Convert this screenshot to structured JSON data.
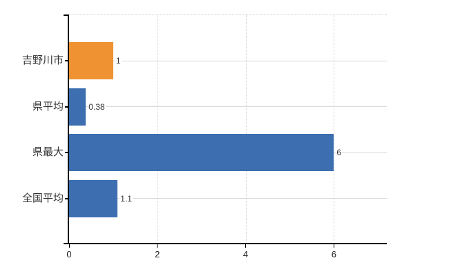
{
  "chart_data": {
    "type": "bar",
    "orientation": "horizontal",
    "title": "",
    "xlabel": "",
    "ylabel": "",
    "categories": [
      "吉野川市",
      "県平均",
      "県最大",
      "全国平均"
    ],
    "values": [
      1,
      0.38,
      6,
      1.1
    ],
    "value_labels": [
      "1",
      "0.38",
      "6",
      "1.1"
    ],
    "series": [
      {
        "name": "",
        "values": [
          1,
          0.38,
          6,
          1.1
        ]
      }
    ],
    "bar_colors": [
      "#ef9231",
      "#3c6eb0",
      "#3c6eb0",
      "#3c6eb0"
    ],
    "x_ticks": [
      "0",
      "2",
      "4",
      "6"
    ],
    "x_tick_values": [
      0,
      2,
      4,
      6
    ],
    "xlim": [
      0,
      7.2
    ],
    "grid": "on",
    "legend": "none",
    "colors": {
      "bar_blue": "#3c6eb0",
      "bar_orange": "#ef9231",
      "axis": "#000000",
      "gridline_h": "#d9d9d9",
      "gridline_v": "#d6d6d6",
      "text": "#333333",
      "background": "#ffffff"
    }
  }
}
